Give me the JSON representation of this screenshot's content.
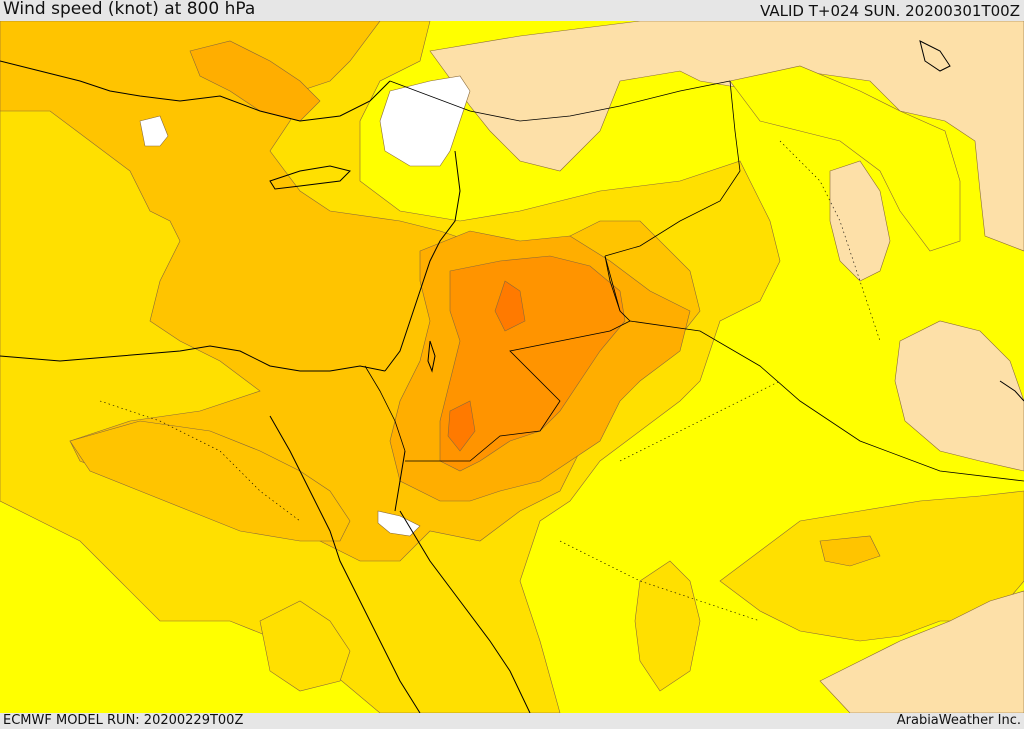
{
  "header": {
    "title": "Wind speed (knot) at 800 hPa",
    "valid": "VALID T+024 SUN. 20200301T00Z"
  },
  "footer": {
    "model_run": "ECMWF MODEL RUN: 20200229T00Z",
    "credit": "ArabiaWeather Inc."
  },
  "map": {
    "region": "Eastern Mediterranean, Levant, Egypt and northern Arabia",
    "colors": {
      "calm": "#ffffff",
      "very_light": "#fde0a8",
      "light": "#ffff00",
      "moderate_low": "#ffe000",
      "moderate": "#ffc400",
      "moderate_high": "#ffae00",
      "strong": "#ff9400",
      "coastline": "#000000",
      "border": "#000000"
    }
  }
}
